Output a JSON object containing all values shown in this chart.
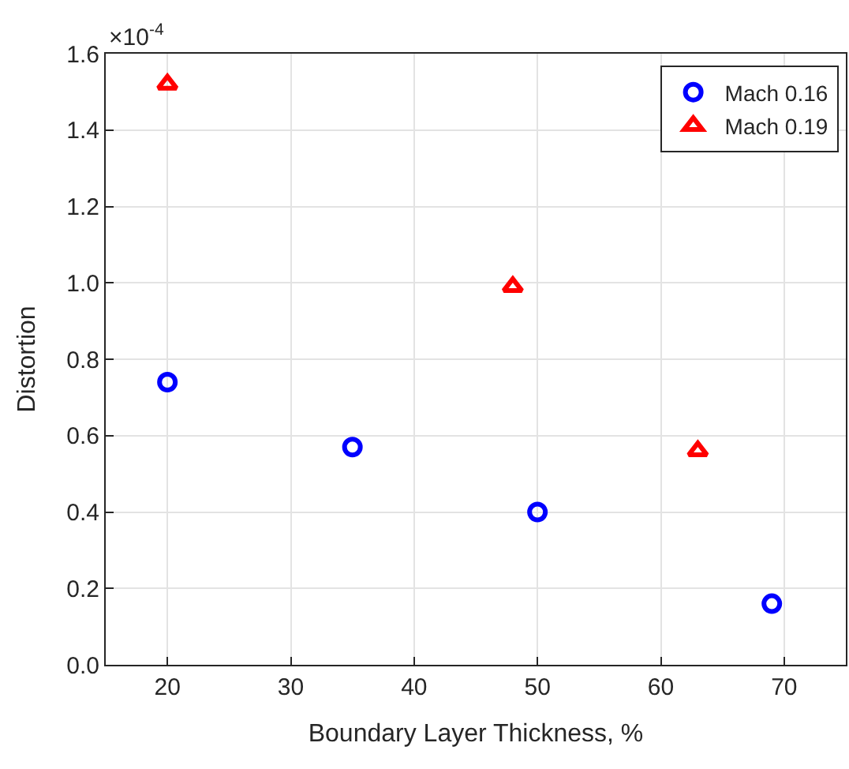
{
  "chart_data": {
    "type": "scatter",
    "xlabel": "Boundary Layer Thickness, %",
    "ylabel": "Distortion",
    "annotations": [
      "×10$^{-4}$"
    ],
    "xlim": [
      15,
      75
    ],
    "xticks": [
      20,
      30,
      40,
      50,
      60,
      70
    ],
    "ylim": [
      0,
      1.6
    ],
    "yticks": [
      {
        "value": 0,
        "label": "0.0"
      },
      0.2,
      0.4,
      0.6,
      0.8,
      {
        "value": 1,
        "label": "1.0"
      },
      1.2,
      1.4,
      1.6
    ],
    "grid": true,
    "legend": "top right",
    "series": [
      {
        "name": "Mach 0.16",
        "color": "#0000ff",
        "marker": "circle",
        "x": [
          20,
          35,
          50,
          69
        ],
        "values": [
          0.74,
          0.57,
          0.4,
          0.16
        ]
      },
      {
        "name": "Mach 0.19",
        "color": "#ff0000",
        "marker": "triangle",
        "x": [
          20,
          48,
          63
        ],
        "values": [
          1.52,
          0.99,
          0.56
        ]
      }
    ]
  }
}
